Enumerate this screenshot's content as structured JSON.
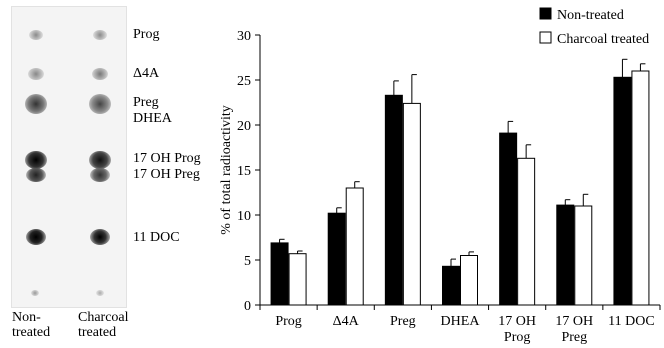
{
  "tlc": {
    "lanes": [
      "Non-\ntreated",
      "Charcoal\ntreated"
    ],
    "spot_labels": [
      "Prog",
      "Δ4A",
      "Preg",
      "DHEA",
      "17 OH Prog",
      "17 OH Preg",
      "11 DOC"
    ]
  },
  "chart_data": {
    "type": "bar",
    "categories": [
      "Prog",
      "Δ4A",
      "Preg",
      "DHEA",
      "17 OH\nProg",
      "17 OH\nPreg",
      "11 DOC"
    ],
    "series": [
      {
        "name": "Non-treated",
        "color": "#000000",
        "values": [
          6.9,
          10.2,
          23.3,
          4.3,
          19.1,
          11.1,
          25.3
        ],
        "errors": [
          0.4,
          0.6,
          1.6,
          0.8,
          1.3,
          0.6,
          2.0
        ]
      },
      {
        "name": "Charcoal treated",
        "color": "#ffffff",
        "values": [
          5.7,
          13.0,
          22.4,
          5.5,
          16.3,
          11.0,
          26.0
        ],
        "errors": [
          0.3,
          0.7,
          3.2,
          0.4,
          1.5,
          1.3,
          0.8
        ]
      }
    ],
    "ylabel": "% of total radioactivity",
    "xlabel": "",
    "ylim": [
      0,
      30
    ],
    "yticks": [
      0,
      5,
      10,
      15,
      20,
      25,
      30
    ],
    "legend_position": "top-right",
    "grid": false
  }
}
